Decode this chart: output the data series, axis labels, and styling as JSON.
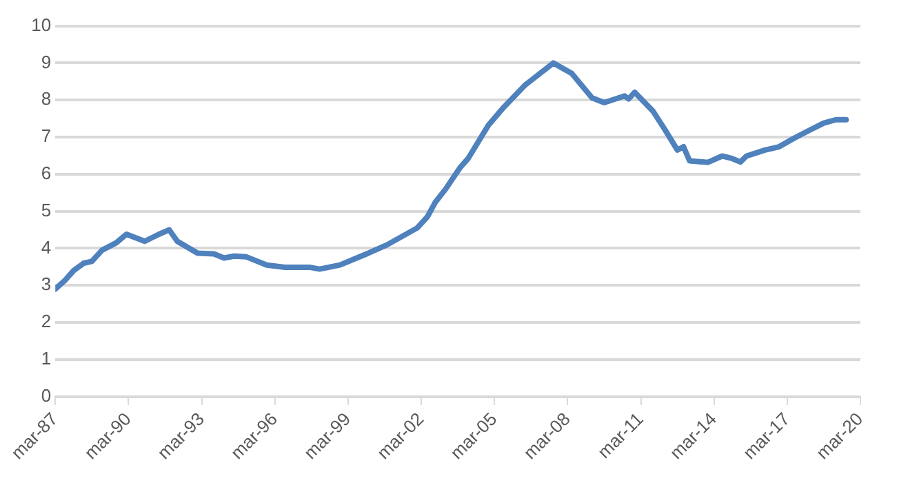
{
  "chart_data": {
    "type": "line",
    "x": [
      "1987-03",
      "1987-08",
      "1987-12",
      "1988-05",
      "1988-09",
      "1989-02",
      "1989-09",
      "1990-02",
      "1990-11",
      "1991-06",
      "1991-11",
      "1992-03",
      "1993-01",
      "1993-09",
      "1994-02",
      "1994-07",
      "1995-01",
      "1995-11",
      "1996-08",
      "1997-08",
      "1998-01",
      "1998-11",
      "2000-01",
      "2000-10",
      "2002-01",
      "2002-06",
      "2002-10",
      "2003-03",
      "2003-10",
      "2004-02",
      "2004-12",
      "2005-07",
      "2006-06",
      "2007-08",
      "2008-05",
      "2009-03",
      "2009-09",
      "2010-07",
      "2010-09",
      "2010-12",
      "2011-09",
      "2012-03",
      "2012-09",
      "2012-12",
      "2013-03",
      "2013-12",
      "2014-07",
      "2014-12",
      "2015-04",
      "2015-07",
      "2016-04",
      "2016-11",
      "2017-06",
      "2018-01",
      "2018-09",
      "2019-03",
      "2019-08"
    ],
    "series": [
      {
        "color": "#4f81bd",
        "values": [
          2.9,
          3.15,
          3.4,
          3.6,
          3.65,
          3.95,
          4.15,
          4.38,
          4.19,
          4.38,
          4.5,
          4.19,
          3.87,
          3.85,
          3.74,
          3.79,
          3.77,
          3.55,
          3.49,
          3.49,
          3.44,
          3.55,
          3.87,
          4.09,
          4.55,
          4.85,
          5.25,
          5.6,
          6.17,
          6.42,
          7.32,
          7.77,
          8.4,
          9.0,
          8.72,
          8.06,
          7.93,
          8.11,
          8.03,
          8.21,
          7.7,
          7.19,
          6.65,
          6.74,
          6.36,
          6.32,
          6.49,
          6.42,
          6.33,
          6.49,
          6.65,
          6.74,
          6.96,
          7.16,
          7.38,
          7.47,
          7.47
        ]
      }
    ],
    "xlim": [
      "1987-03",
      "2020-03"
    ],
    "xticks": [
      {
        "value": "1987-03",
        "label": "mar-87"
      },
      {
        "value": "1990-03",
        "label": "mar-90"
      },
      {
        "value": "1993-03",
        "label": "mar-93"
      },
      {
        "value": "1996-03",
        "label": "mar-96"
      },
      {
        "value": "1999-03",
        "label": "mar-99"
      },
      {
        "value": "2002-03",
        "label": "mar-02"
      },
      {
        "value": "2005-03",
        "label": "mar-05"
      },
      {
        "value": "2008-03",
        "label": "mar-08"
      },
      {
        "value": "2011-03",
        "label": "mar-11"
      },
      {
        "value": "2014-03",
        "label": "mar-14"
      },
      {
        "value": "2017-03",
        "label": "mar-17"
      },
      {
        "value": "2020-03",
        "label": "mar-20"
      }
    ],
    "ylim": [
      0,
      10
    ],
    "yticks": [
      0,
      1,
      2,
      3,
      4,
      5,
      6,
      7,
      8,
      9,
      10
    ],
    "grid": "y",
    "legend": false,
    "marker": "none",
    "line_style": "solid"
  }
}
